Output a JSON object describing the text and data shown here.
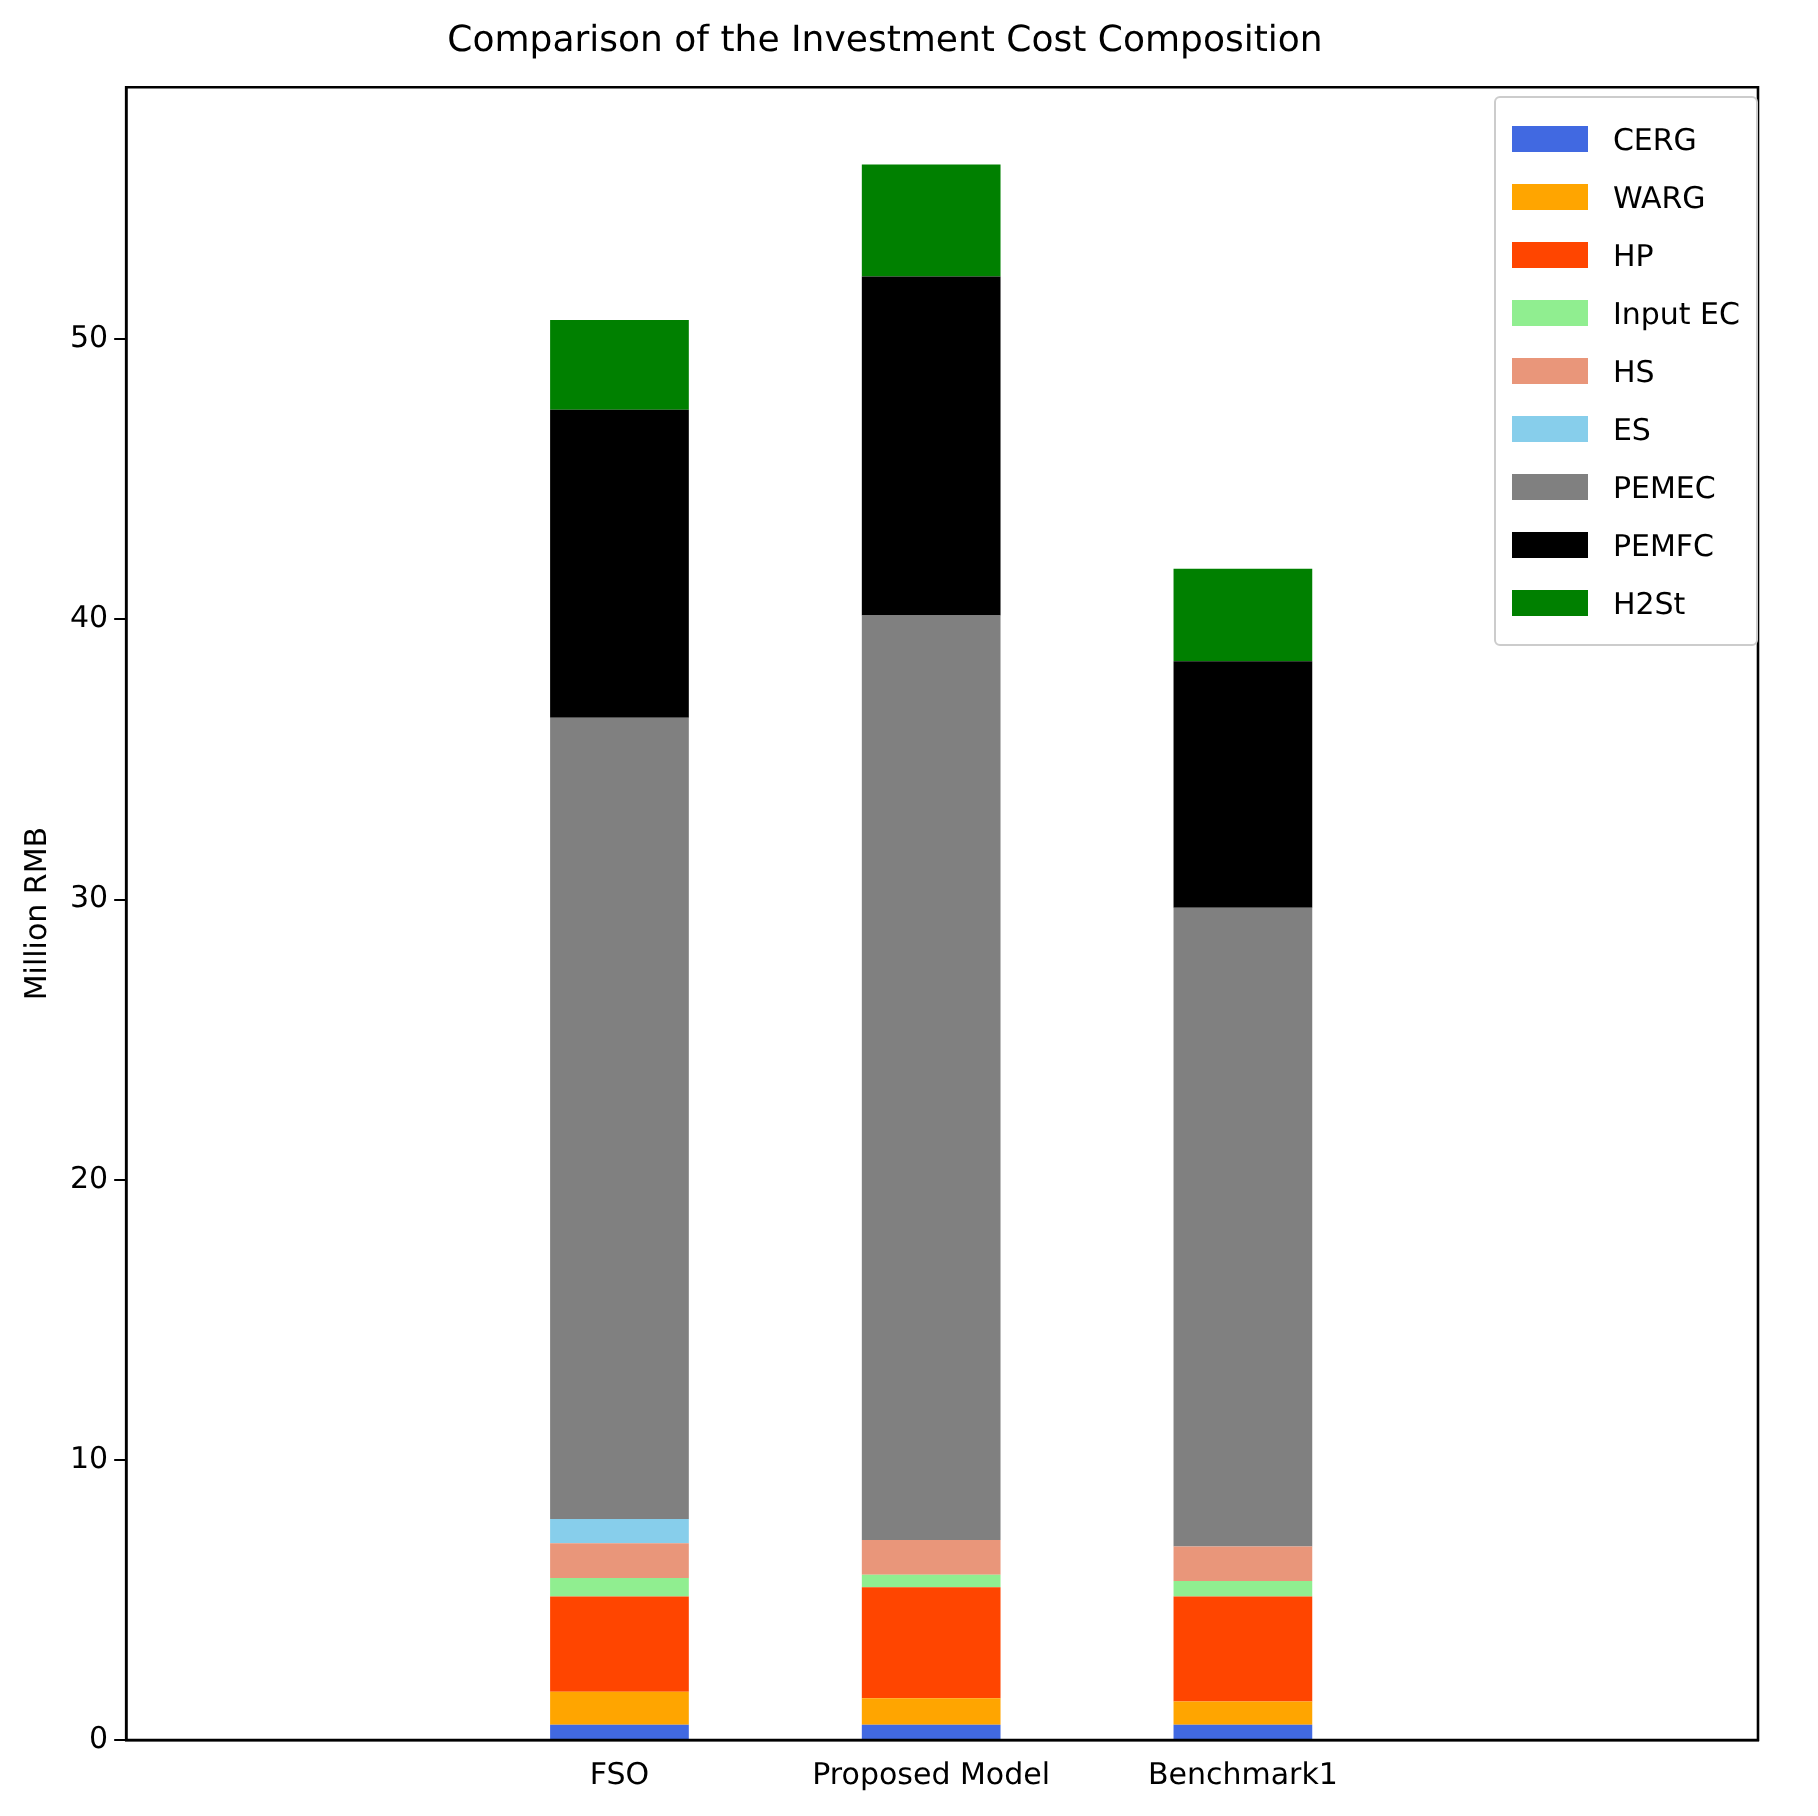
{
  "chart_data": {
    "type": "bar",
    "title": "Comparison of the Investment Cost Composition",
    "ylabel": "Million RMB",
    "categories": [
      "FSO",
      "Proposed Model",
      "Benchmark1"
    ],
    "stacked": true,
    "legend": "top right",
    "grid": false,
    "ylim": [
      0,
      59
    ],
    "yticks": [
      0,
      10,
      20,
      30,
      40,
      50
    ],
    "series": [
      {
        "name": "CERG",
        "color": "#4169e1",
        "values": [
          0.54,
          0.54,
          0.54
        ]
      },
      {
        "name": "WARG",
        "color": "#ffa500",
        "values": [
          1.18,
          0.95,
          0.83
        ]
      },
      {
        "name": "HP",
        "color": "#ff4500",
        "values": [
          3.4,
          3.96,
          3.75
        ]
      },
      {
        "name": "Input EC",
        "color": "#90ee90",
        "values": [
          0.66,
          0.45,
          0.56
        ]
      },
      {
        "name": "HS",
        "color": "#e9967a",
        "values": [
          1.24,
          1.24,
          1.23
        ]
      },
      {
        "name": "ES",
        "color": "#87ceeb",
        "values": [
          0.87,
          0,
          0
        ]
      },
      {
        "name": "PEMEC",
        "color": "#808080",
        "values": [
          28.6,
          33.0,
          22.8
        ]
      },
      {
        "name": "PEMFC",
        "color": "#000000",
        "values": [
          11.0,
          12.1,
          8.8
        ]
      },
      {
        "name": "H2St",
        "color": "#008000",
        "values": [
          3.2,
          4.0,
          3.3
        ]
      }
    ]
  }
}
